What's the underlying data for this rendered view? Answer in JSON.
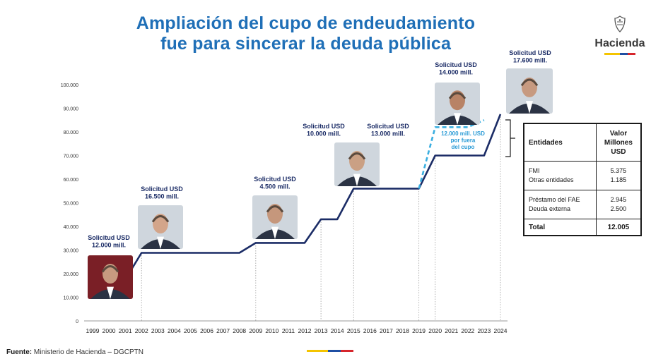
{
  "header": {
    "title_line1": "Ampliación del cupo de endeudamiento",
    "title_line2": "fue para sincerar la deuda pública"
  },
  "logo": {
    "name": "Hacienda",
    "icon": "coat-of-arms-icon",
    "stripe_colors": [
      "#f4c400",
      "#1f4fa3",
      "#d6262c"
    ]
  },
  "chart_data": {
    "type": "line",
    "x": [
      "1999",
      "2000",
      "2001",
      "2002",
      "2003",
      "2004",
      "2005",
      "2006",
      "2007",
      "2008",
      "2009",
      "2010",
      "2011",
      "2012",
      "2013",
      "2014",
      "2015",
      "2016",
      "2017",
      "2018",
      "2019",
      "2020",
      "2021",
      "2022",
      "2023",
      "2024"
    ],
    "ylim": [
      0,
      100000
    ],
    "yticks": [
      0,
      10000,
      20000,
      30000,
      40000,
      50000,
      60000,
      70000,
      80000,
      90000,
      100000
    ],
    "ytick_labels": [
      "0",
      "10.000",
      "20.000",
      "30.000",
      "40.000",
      "50.000",
      "60.000",
      "70.000",
      "80.000",
      "90.000",
      "100.000"
    ],
    "series": [
      {
        "points": [
          [
            "1999",
            10000
          ],
          [
            "2001",
            17500
          ],
          [
            "2002",
            28800
          ],
          [
            "2003",
            28800
          ],
          [
            "2008",
            28800
          ],
          [
            "2009",
            33000
          ],
          [
            "2011",
            33000
          ],
          [
            "2012",
            33000
          ],
          [
            "2013",
            43000
          ],
          [
            "2014",
            43000
          ],
          [
            "2015",
            56000
          ],
          [
            "2018",
            56000
          ],
          [
            "2019",
            56000
          ],
          [
            "2020",
            70000
          ],
          [
            "2023",
            70000
          ],
          [
            "2024",
            87500
          ]
        ],
        "color": "#1b2c66",
        "style": "solid"
      },
      {
        "points": [
          [
            "2019",
            56000
          ],
          [
            "2020",
            82000
          ],
          [
            "2022",
            82000
          ],
          [
            "2023",
            85000
          ]
        ],
        "color": "#3aaee0",
        "style": "dashed"
      }
    ],
    "annotations": [
      {
        "year": "1999",
        "text": [
          "Solicitud USD",
          "12.000 mill."
        ],
        "photo_name": "portrait-1999-icon"
      },
      {
        "year": "2002",
        "text": [
          "Solicitud USD",
          "16.500 mill."
        ],
        "photo_name": "portrait-2002-icon"
      },
      {
        "year": "2009",
        "text": [
          "Solicitud USD",
          "4.500 mill."
        ],
        "photo_name": "portrait-2009-icon"
      },
      {
        "year": "2013",
        "text": [
          "Solicitud USD",
          "10.000 mill."
        ],
        "photo_name": "portrait-2013-icon"
      },
      {
        "year": "2017",
        "text": [
          "Solicitud USD",
          "13.000 mill."
        ],
        "photo_name": ""
      },
      {
        "year": "2021",
        "text": [
          "Solicitud USD",
          "14.000 mill."
        ],
        "photo_name": "portrait-2021-icon"
      },
      {
        "year": "2023",
        "text": [
          "Solicitud USD",
          "17.600 mill."
        ],
        "photo_name": "portrait-2023-icon"
      }
    ],
    "dashed_note": [
      "12.000 mill. USD",
      "por fuera",
      "del cupo"
    ],
    "grid": false,
    "line_color": "#1b2c66",
    "dash_color": "#3aaee0"
  },
  "table": {
    "col1_header": "Entidades",
    "col2_header": [
      "Valor",
      "Millones",
      "USD"
    ],
    "groups": [
      {
        "labels": [
          "FMI",
          "Otras entidades"
        ],
        "values": [
          "5.375",
          "1.185"
        ]
      },
      {
        "labels": [
          "Préstamo del FAE",
          "Deuda externa"
        ],
        "values": [
          "2.945",
          "2.500"
        ]
      }
    ],
    "total_label": "Total",
    "total_value": "12.005"
  },
  "footer": {
    "source_label": "Fuente:",
    "source_text": " Ministerio de Hacienda – DGCPTN"
  }
}
